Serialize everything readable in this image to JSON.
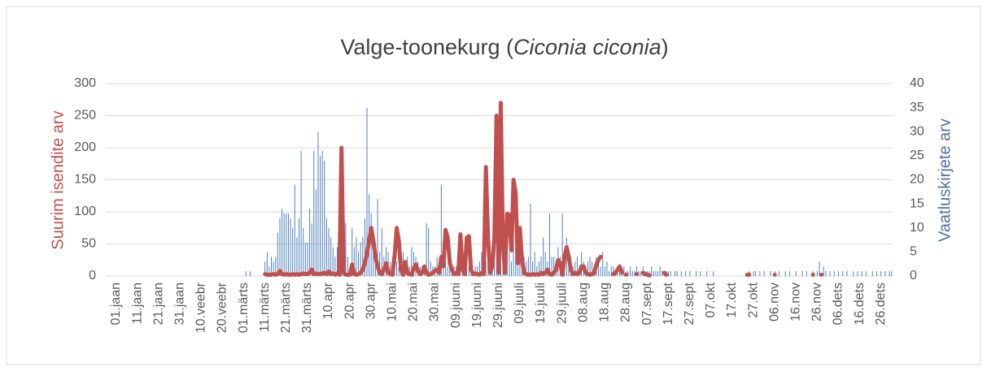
{
  "chart_data": {
    "type": "bar_line",
    "title": [
      "Valge-toonekurg (",
      "Ciconia ciconia",
      ")"
    ],
    "y_label": "Suurim isendite arv",
    "y2_label": "Vaatluskirjete arv",
    "ylim": [
      0,
      300
    ],
    "yticks": [
      0,
      50,
      100,
      150,
      200,
      250,
      300
    ],
    "y2lim": [
      0,
      40
    ],
    "y2ticks": [
      0,
      5,
      10,
      15,
      20,
      25,
      30,
      35,
      40
    ],
    "grid": true,
    "categories": [
      "01.jaan",
      null,
      null,
      null,
      null,
      null,
      null,
      null,
      null,
      null,
      "11.jaan",
      null,
      null,
      null,
      null,
      null,
      null,
      null,
      null,
      null,
      "21.jaan",
      null,
      null,
      null,
      null,
      null,
      null,
      null,
      null,
      null,
      "31.jaan",
      null,
      null,
      null,
      null,
      null,
      null,
      null,
      null,
      null,
      "10.veebr",
      null,
      null,
      null,
      null,
      null,
      null,
      null,
      null,
      null,
      "20.veebr",
      null,
      null,
      null,
      null,
      null,
      null,
      null,
      null,
      null,
      "01.märts",
      null,
      null,
      null,
      null,
      null,
      null,
      null,
      null,
      null,
      "11.märts",
      null,
      null,
      null,
      null,
      null,
      null,
      null,
      null,
      null,
      "21.märts",
      null,
      null,
      null,
      null,
      null,
      null,
      null,
      null,
      null,
      "31.märts",
      null,
      null,
      null,
      null,
      null,
      null,
      null,
      null,
      null,
      "10.apr",
      null,
      null,
      null,
      null,
      null,
      null,
      null,
      null,
      null,
      "20.apr",
      null,
      null,
      null,
      null,
      null,
      null,
      null,
      null,
      null,
      "30.apr",
      null,
      null,
      null,
      null,
      null,
      null,
      null,
      null,
      null,
      "10.mai",
      null,
      null,
      null,
      null,
      null,
      null,
      null,
      null,
      null,
      "20.mai",
      null,
      null,
      null,
      null,
      null,
      null,
      null,
      null,
      null,
      "30.mai",
      null,
      null,
      null,
      null,
      null,
      null,
      null,
      null,
      null,
      "09.juuni",
      null,
      null,
      null,
      null,
      null,
      null,
      null,
      null,
      null,
      "19.juuni",
      null,
      null,
      null,
      null,
      null,
      null,
      null,
      null,
      null,
      "29.juuni",
      null,
      null,
      null,
      null,
      null,
      null,
      null,
      null,
      null,
      "09.juuli",
      null,
      null,
      null,
      null,
      null,
      null,
      null,
      null,
      null,
      "19.juuli",
      null,
      null,
      null,
      null,
      null,
      null,
      null,
      null,
      null,
      "29.juuli",
      null,
      null,
      null,
      null,
      null,
      null,
      null,
      null,
      null,
      "08.aug",
      null,
      null,
      null,
      null,
      null,
      null,
      null,
      null,
      null,
      "18.aug",
      null,
      null,
      null,
      null,
      null,
      null,
      null,
      null,
      null,
      "28.aug",
      null,
      null,
      null,
      null,
      null,
      null,
      null,
      null,
      null,
      "07.sept",
      null,
      null,
      null,
      null,
      null,
      null,
      null,
      null,
      null,
      "17.sept",
      null,
      null,
      null,
      null,
      null,
      null,
      null,
      null,
      null,
      "27.sept",
      null,
      null,
      null,
      null,
      null,
      null,
      null,
      null,
      null,
      "07.okt",
      null,
      null,
      null,
      null,
      null,
      null,
      null,
      null,
      null,
      "17.okt",
      null,
      null,
      null,
      null,
      null,
      null,
      null,
      null,
      null,
      "27.okt",
      null,
      null,
      null,
      null,
      null,
      null,
      null,
      null,
      null,
      "06.nov",
      null,
      null,
      null,
      null,
      null,
      null,
      null,
      null,
      null,
      "16.nov",
      null,
      null,
      null,
      null,
      null,
      null,
      null,
      null,
      null,
      "26.nov",
      null,
      null,
      null,
      null,
      null,
      null,
      null,
      null,
      null,
      "06.dets",
      null,
      null,
      null,
      null,
      null,
      null,
      null,
      null,
      null,
      "16.dets",
      null,
      null,
      null,
      null,
      null,
      null,
      null,
      null,
      null,
      "26.dets",
      null,
      null,
      null,
      null,
      null
    ],
    "series": [
      {
        "name": "Vaatluskirjete arv",
        "type": "bar",
        "axis": "y2",
        "color": "#4f81bd",
        "values": [
          0,
          0,
          0,
          0,
          0,
          0,
          0,
          0,
          0,
          0,
          0,
          0,
          0,
          0,
          0,
          0,
          0,
          0,
          0,
          0,
          0,
          0,
          0,
          0,
          0,
          0,
          0,
          0,
          0,
          0,
          0,
          0,
          0,
          0,
          0,
          0,
          0,
          0,
          0,
          0,
          0,
          0,
          0,
          0,
          0,
          0,
          0,
          0,
          0,
          0,
          0,
          0,
          0,
          0,
          0,
          0,
          0,
          0,
          0,
          0,
          0,
          1,
          0,
          1,
          0,
          0,
          0,
          0,
          0,
          0,
          3,
          5,
          2,
          4,
          3,
          4,
          9,
          12,
          14,
          13,
          13,
          13,
          12,
          10,
          19,
          8,
          12,
          26,
          10,
          7,
          7,
          14,
          11,
          26,
          18,
          30,
          25,
          26,
          24,
          12,
          10,
          8,
          6,
          4,
          6,
          3,
          5,
          4,
          11,
          4,
          2,
          10,
          6,
          8,
          5,
          7,
          8,
          12,
          35,
          17,
          13,
          8,
          7,
          16,
          5,
          10,
          4,
          6,
          5,
          3,
          4,
          5,
          3,
          2,
          6,
          5,
          3,
          4,
          2,
          6,
          5,
          4,
          3,
          2,
          2,
          1,
          11,
          10,
          3,
          2,
          2,
          4,
          2,
          19,
          5,
          3,
          2,
          3,
          1,
          2,
          2,
          3,
          2,
          4,
          1,
          3,
          2,
          3,
          1,
          2,
          2,
          3,
          5,
          2,
          3,
          4,
          2,
          3,
          5,
          6,
          7,
          8,
          6,
          4,
          9,
          5,
          3,
          15,
          6,
          4,
          4,
          5,
          4,
          3,
          4,
          15,
          3,
          5,
          2,
          3,
          4,
          8,
          5,
          3,
          13,
          4,
          4,
          3,
          6,
          4,
          13,
          5,
          8,
          3,
          4,
          2,
          3,
          4,
          2,
          5,
          3,
          2,
          3,
          4,
          3,
          2,
          4,
          3,
          2,
          5,
          2,
          3,
          1,
          2,
          2,
          1,
          1,
          2,
          1,
          2,
          1,
          1,
          2,
          1,
          1,
          2,
          1,
          1,
          2,
          1,
          1,
          1,
          2,
          1,
          1,
          1,
          2,
          1,
          1,
          1,
          1,
          1,
          0,
          1,
          1,
          0,
          1,
          0,
          1,
          0,
          1,
          0,
          0,
          1,
          0,
          1,
          0,
          0,
          1,
          0,
          0,
          1,
          0,
          0,
          0,
          0,
          0,
          0,
          0,
          0,
          0,
          0,
          0,
          0,
          0,
          0,
          0,
          0,
          1,
          0,
          1,
          1,
          0,
          1,
          0,
          1,
          0,
          0,
          1,
          0,
          1,
          0,
          1,
          0,
          0,
          1,
          0,
          1,
          0,
          0,
          1,
          0,
          0,
          1,
          0,
          1,
          0,
          0,
          1,
          0,
          1,
          3,
          0,
          2,
          1,
          0,
          1,
          0,
          1,
          0,
          1,
          0,
          1,
          0,
          1,
          0,
          0,
          1,
          0,
          1,
          0,
          1,
          0,
          1,
          0,
          0,
          1,
          0,
          1,
          0,
          1,
          0,
          1,
          0,
          1,
          1
        ]
      },
      {
        "name": "Suurim isendite arv",
        "type": "line",
        "axis": "y",
        "color": "#c0504d",
        "values": [
          null,
          null,
          null,
          null,
          null,
          null,
          null,
          null,
          null,
          null,
          null,
          null,
          null,
          null,
          null,
          null,
          null,
          null,
          null,
          null,
          null,
          null,
          null,
          null,
          null,
          null,
          null,
          null,
          null,
          null,
          null,
          null,
          null,
          null,
          null,
          null,
          null,
          null,
          null,
          null,
          null,
          null,
          null,
          null,
          null,
          null,
          null,
          null,
          null,
          null,
          null,
          null,
          null,
          null,
          null,
          null,
          null,
          null,
          null,
          null,
          null,
          null,
          null,
          null,
          null,
          null,
          null,
          null,
          null,
          null,
          3,
          2,
          2,
          2,
          3,
          2,
          3,
          8,
          3,
          2,
          3,
          2,
          2,
          3,
          2,
          3,
          2,
          3,
          4,
          3,
          3,
          5,
          10,
          3,
          4,
          3,
          3,
          4,
          5,
          3,
          7,
          3,
          4,
          2,
          4,
          2,
          200,
          5,
          2,
          2,
          2,
          18,
          3,
          2,
          3,
          5,
          10,
          20,
          35,
          55,
          75,
          55,
          30,
          15,
          5,
          3,
          10,
          20,
          5,
          3,
          2,
          30,
          75,
          55,
          10,
          2,
          22,
          5,
          3,
          2,
          12,
          18,
          8,
          3,
          5,
          15,
          5,
          2,
          3,
          5,
          8,
          10,
          5,
          30,
          15,
          72,
          60,
          20,
          10,
          3,
          5,
          3,
          65,
          10,
          3,
          60,
          62,
          10,
          3,
          4,
          3,
          2,
          5,
          3,
          170,
          60,
          5,
          15,
          60,
          250,
          5,
          270,
          50,
          5,
          97,
          95,
          40,
          150,
          130,
          20,
          75,
          25,
          5,
          3,
          2,
          2,
          3,
          2,
          3,
          2,
          5,
          3,
          5,
          10,
          3,
          2,
          5,
          10,
          25,
          20,
          2,
          30,
          45,
          30,
          10,
          3,
          5,
          3,
          5,
          15,
          15,
          5,
          3,
          2,
          3,
          5,
          18,
          25,
          30,
          null,
          null,
          null,
          null,
          null,
          3,
          5,
          10,
          15,
          5,
          null,
          2,
          null,
          null,
          null,
          null,
          3,
          null,
          null,
          5,
          3,
          2,
          1,
          null,
          null,
          null,
          null,
          null,
          null,
          5,
          2,
          null,
          null,
          null,
          null,
          null,
          null,
          null,
          null,
          null,
          null,
          null,
          null,
          null,
          null,
          null,
          null,
          null,
          null,
          null,
          null,
          null,
          null,
          null,
          null,
          null,
          null,
          null,
          null,
          null,
          null,
          null,
          null,
          null,
          null,
          null,
          null,
          null,
          2,
          2,
          null,
          null,
          null,
          null,
          null,
          null,
          null,
          null,
          null,
          null,
          null,
          2,
          null,
          null,
          null,
          null,
          null,
          null,
          null,
          null,
          null,
          null,
          null,
          null,
          null,
          null,
          null,
          null,
          null,
          2,
          null,
          null,
          null,
          2,
          null,
          null,
          null,
          null,
          null,
          null,
          null,
          null,
          null,
          null,
          null,
          null,
          null,
          null,
          null,
          null,
          null,
          null,
          null,
          null,
          null,
          null,
          null,
          null,
          null,
          null,
          null,
          null,
          null,
          null,
          null,
          null,
          null
        ]
      }
    ]
  }
}
